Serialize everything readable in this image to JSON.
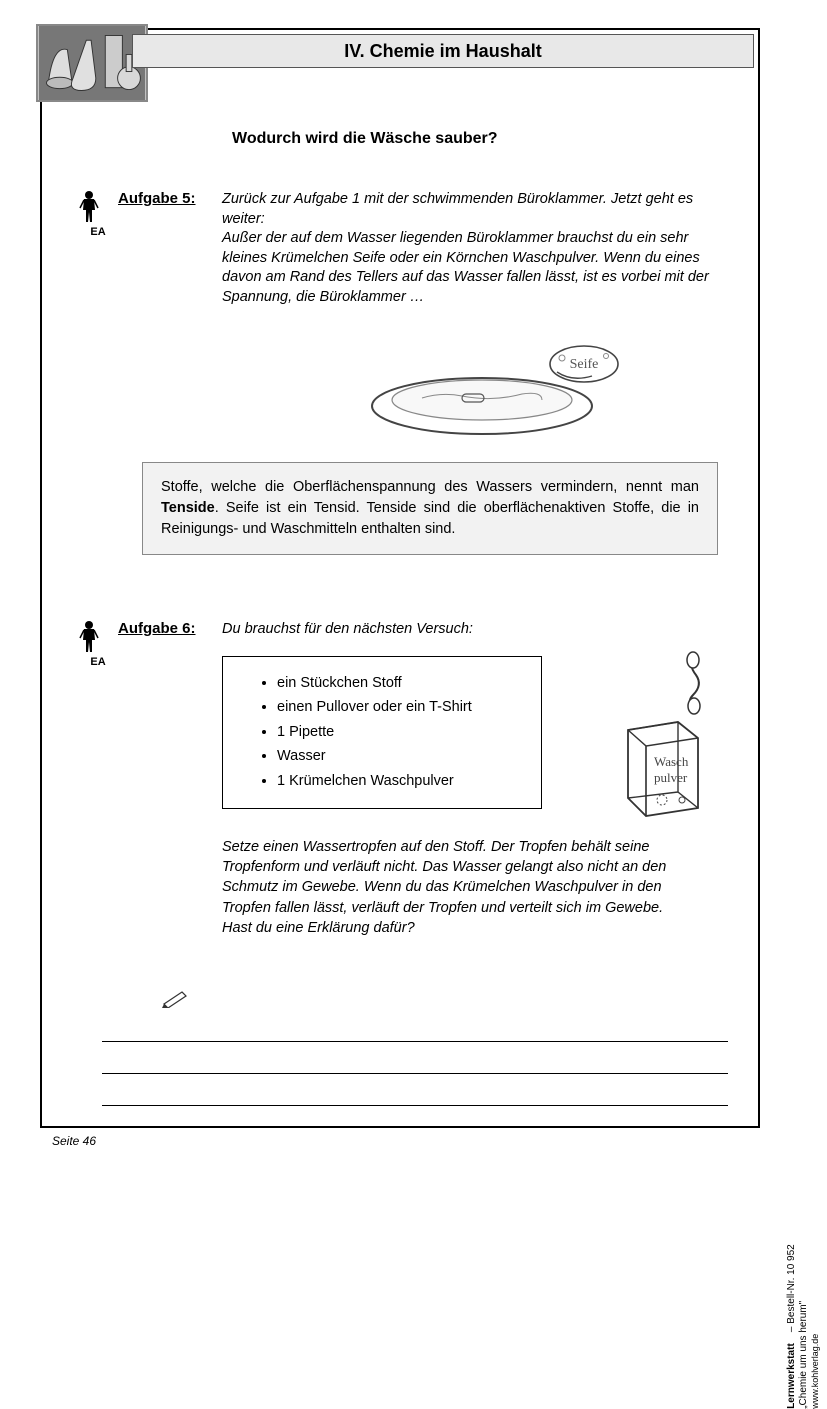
{
  "header": {
    "title": "IV.   Chemie im Haushalt"
  },
  "subtitle": "Wodurch wird die Wäsche sauber?",
  "task5": {
    "ea": "EA",
    "label": "Aufgabe 5:",
    "text": "Zurück zur Aufgabe 1 mit der schwimmenden Büroklammer. Jetzt geht es weiter:\nAußer der auf dem Wasser liegenden Büroklammer brauchst du ein sehr kleines Krümelchen Seife oder ein Körnchen Waschpulver. Wenn du eines davon am Rand des Tellers auf das Wasser fallen lässt, ist es vorbei mit der Spannung, die Büroklammer …",
    "soap_label": "Seife"
  },
  "infobox": {
    "pre": "Stoffe, welche die Oberflächenspannung des Wassers vermindern, nennt man ",
    "bold": "Tenside",
    "post": ". Seife ist ein Tensid. Tenside sind die oberflächenaktiven Stoffe, die in Reinigungs- und Waschmitteln enthalten sind."
  },
  "task6": {
    "ea": "EA",
    "label": "Aufgabe 6:",
    "intro": "Du brauchst für den nächsten Versuch:",
    "materials": [
      "ein Stückchen Stoff",
      "einen Pullover oder ein T-Shirt",
      "1 Pipette",
      "Wasser",
      "1 Krümelchen Waschpulver"
    ],
    "box_label1": "Wasch",
    "box_label2": "pulver",
    "instr": "Setze einen Wassertropfen auf den Stoff. Der Tropfen behält seine Tropfenform und verläuft nicht. Das Wasser gelangt also nicht an den Schmutz im Gewebe. Wenn du das Krümelchen Waschpulver in den Tropfen fallen lässt, verläuft der Tropfen und verteilt sich im Gewebe.\nHast du eine Erklärung dafür?"
  },
  "footer": {
    "page": "Seite 46",
    "side1": "Lernwerkstatt",
    "side2": "„Chemie um uns herum\"",
    "side3": "–   Bestell-Nr. 10 952",
    "side4": "www.kohlverlag.de",
    "publisher": "KOHL"
  },
  "colors": {
    "header_bg": "#e8e8e8",
    "info_bg": "#f2f2f2",
    "border": "#000000",
    "text": "#000000"
  }
}
